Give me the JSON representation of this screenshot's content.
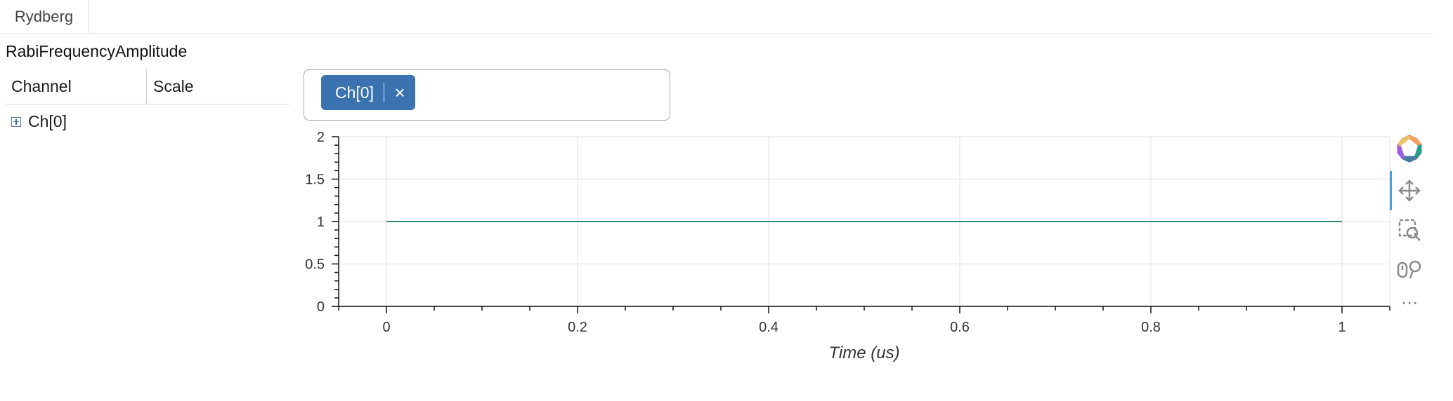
{
  "tabs": [
    {
      "label": "Rydberg"
    }
  ],
  "section": {
    "title": "RabiFrequencyAmplitude"
  },
  "table": {
    "columns": [
      "Channel",
      "Scale"
    ],
    "rows": [
      {
        "label": "Ch[0]"
      }
    ]
  },
  "selector": {
    "chip_label": "Ch[0]",
    "remove_glyph": "×"
  },
  "toolbar": {
    "icons": [
      "bokeh-logo-icon",
      "pan-icon",
      "box-zoom-icon",
      "wheel-zoom-icon",
      "more-icon"
    ],
    "more_label": "⋯",
    "active_tool": "pan-icon"
  },
  "chart_data": {
    "type": "line",
    "x": [
      0,
      1
    ],
    "series": [
      {
        "values": [
          1,
          1
        ],
        "color": "#2e8b7a"
      }
    ],
    "xlabel": "Time (us)",
    "ylabel": "",
    "xlim": [
      -0.05,
      1.05
    ],
    "ylim": [
      0,
      2
    ],
    "xticks": [
      0,
      0.2,
      0.4,
      0.6,
      0.8,
      1
    ],
    "yticks": [
      0,
      0.5,
      1,
      1.5,
      2
    ],
    "xtick_labels": [
      "0",
      "0.2",
      "0.4",
      "0.6",
      "0.8",
      "1"
    ],
    "ytick_labels": [
      "0",
      "0.5",
      "1",
      "1.5",
      "2"
    ],
    "grid": true
  }
}
